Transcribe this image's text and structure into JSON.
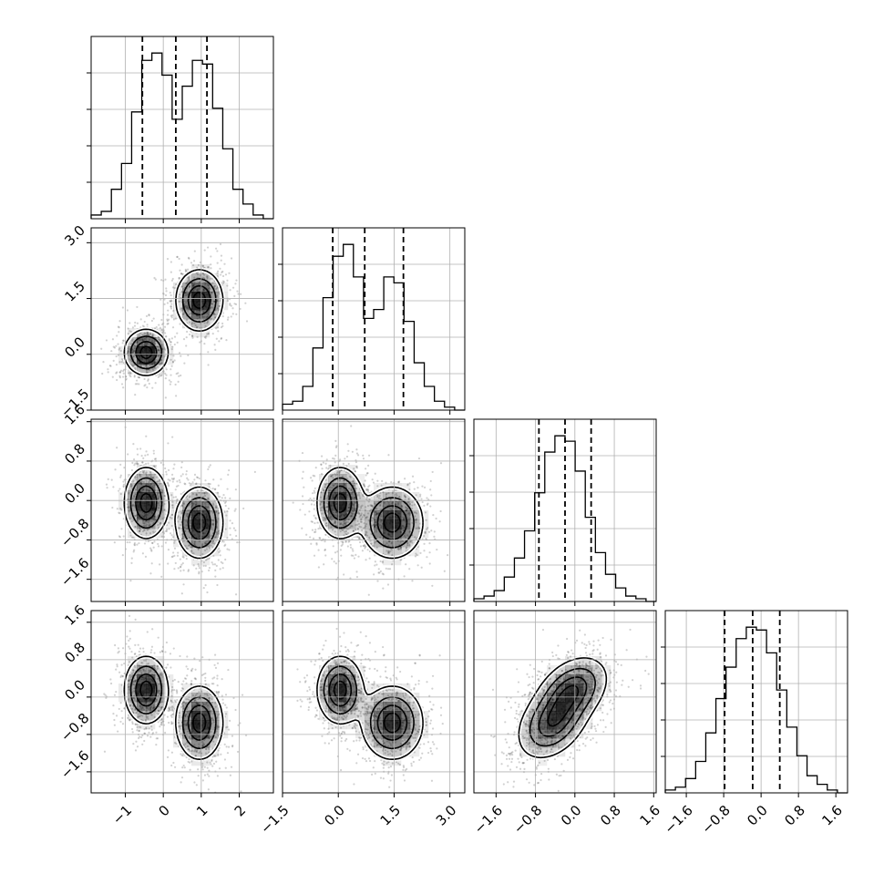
{
  "chart_data": {
    "type": "corner",
    "n_params": 4,
    "grid": true,
    "params": [
      {
        "range": [
          -1.9,
          2.9
        ],
        "ticks": [
          "−1",
          "0",
          "1",
          "2"
        ],
        "tick_values": [
          -1,
          0,
          1,
          2
        ],
        "quantiles": [
          -0.55,
          0.33,
          1.15
        ],
        "hist_edges": [
          -1.9,
          2.9
        ],
        "hist": [
          1,
          2,
          8,
          15,
          29,
          43,
          45,
          39,
          27,
          36,
          43,
          42,
          30,
          19,
          8,
          4,
          1,
          0
        ]
      },
      {
        "range": [
          -1.5,
          3.4
        ],
        "ticks": [
          "−1.5",
          "0.0",
          "1.5",
          "3.0"
        ],
        "tick_values": [
          -1.5,
          0.0,
          1.5,
          3.0
        ],
        "quantiles": [
          -0.15,
          0.71,
          1.75
        ],
        "hist_edges": [
          -1.5,
          3.4
        ],
        "hist": [
          2,
          3,
          8,
          21,
          38,
          52,
          56,
          45,
          31,
          34,
          45,
          43,
          30,
          16,
          8,
          3,
          1,
          0
        ]
      },
      {
        "range": [
          -2.05,
          1.65
        ],
        "ticks": [
          "−1.6",
          "−0.8",
          "0.0",
          "0.8",
          "1.6"
        ],
        "tick_values": [
          -1.6,
          -0.8,
          0.0,
          0.8,
          1.6
        ],
        "quantiles": [
          -0.73,
          -0.2,
          0.33
        ],
        "hist_edges": [
          -2.05,
          1.65
        ],
        "hist": [
          1,
          2,
          4,
          9,
          16,
          26,
          40,
          55,
          61,
          59,
          48,
          31,
          18,
          10,
          5,
          2,
          1,
          0
        ]
      },
      {
        "range": [
          -2.05,
          1.85
        ],
        "ticks": [
          "−1.6",
          "−0.8",
          "0.0",
          "0.8",
          "1.6"
        ],
        "tick_values": [
          -1.6,
          -0.8,
          0.0,
          0.8,
          1.6
        ],
        "quantiles": [
          -0.78,
          -0.18,
          0.4
        ],
        "hist_edges": [
          -2.05,
          1.85
        ],
        "hist": [
          1,
          2,
          5,
          11,
          21,
          33,
          44,
          54,
          58,
          57,
          49,
          36,
          23,
          13,
          6,
          3,
          1,
          0
        ]
      }
    ],
    "mixture": [
      {
        "w": 0.5,
        "mean": [
          -0.45,
          0.05,
          -0.05,
          0.15
        ],
        "sd": [
          0.28,
          0.3,
          0.35,
          0.35
        ]
      },
      {
        "w": 0.5,
        "mean": [
          0.95,
          1.45,
          -0.45,
          -0.55
        ],
        "sd": [
          0.3,
          0.4,
          0.35,
          0.38
        ]
      }
    ],
    "colors": {
      "line": "#000000",
      "grid": "#b0b0b0",
      "density": "#000000",
      "points": "#000000"
    }
  }
}
